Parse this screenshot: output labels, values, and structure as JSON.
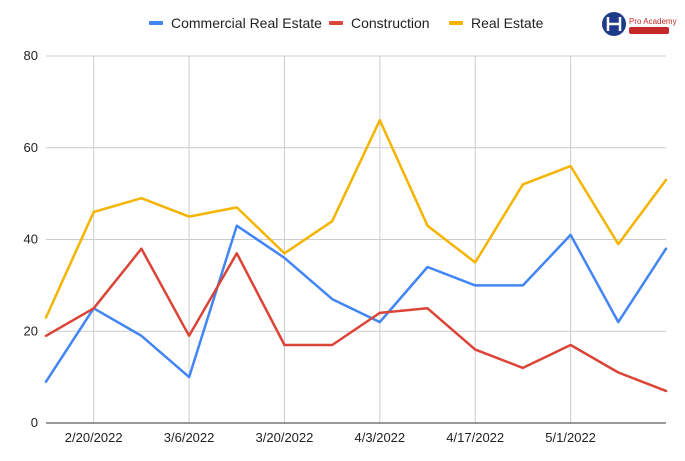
{
  "chart_data": {
    "type": "line",
    "title": "",
    "xlabel": "",
    "ylabel": "",
    "ylim": [
      0,
      80
    ],
    "yticks": [
      0,
      20,
      40,
      60,
      80
    ],
    "grid": true,
    "legend_position": "top",
    "x_tick_labels": [
      "2/20/2022",
      "3/6/2022",
      "3/20/2022",
      "4/3/2022",
      "4/17/2022",
      "5/1/2022"
    ],
    "x": [
      "2/13/2022",
      "2/20/2022",
      "2/27/2022",
      "3/6/2022",
      "3/13/2022",
      "3/20/2022",
      "3/27/2022",
      "4/3/2022",
      "4/10/2022",
      "4/17/2022",
      "4/24/2022",
      "5/1/2022",
      "5/8/2022",
      "5/15/2022"
    ],
    "series": [
      {
        "name": "Commercial Real Estate",
        "color": "#4285f4",
        "values": [
          9,
          25,
          19,
          10,
          43,
          36,
          27,
          22,
          34,
          30,
          30,
          41,
          22,
          38
        ]
      },
      {
        "name": "Construction",
        "color": "#db4437",
        "values": [
          19,
          25,
          38,
          19,
          37,
          17,
          17,
          24,
          25,
          16,
          12,
          17,
          11,
          7
        ]
      },
      {
        "name": "Real Estate",
        "color": "#f4b400",
        "values": [
          23,
          46,
          49,
          45,
          47,
          37,
          44,
          66,
          43,
          35,
          52,
          56,
          39,
          53
        ]
      }
    ]
  },
  "logo": {
    "text": "Pro Academy"
  }
}
